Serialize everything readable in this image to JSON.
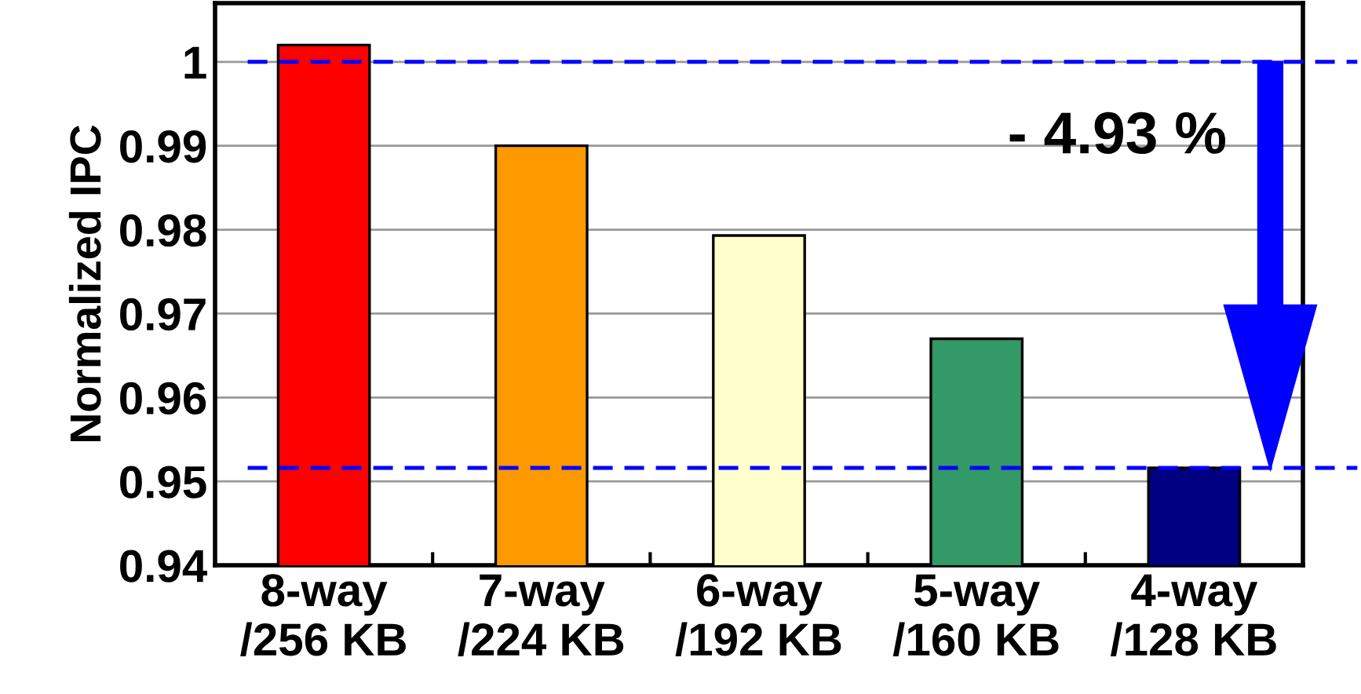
{
  "chart_data": {
    "type": "bar",
    "ylabel": "Normalized IPC",
    "categories": [
      "8-way\n/256 KB",
      "7-way\n/224 KB",
      "6-way\n/192 KB",
      "5-way\n/160 KB",
      "4-way\n/128 KB"
    ],
    "values": [
      1.002,
      0.99,
      0.9793,
      0.967,
      0.9516
    ],
    "colors": [
      "#ff0000",
      "#ff9900",
      "#ffffcc",
      "#339966",
      "#000080"
    ],
    "ylim": [
      0.94,
      1.007
    ],
    "yticks": [
      0.94,
      0.95,
      0.96,
      0.97,
      0.98,
      0.99,
      1
    ],
    "grid": "y",
    "ref_lines": [
      {
        "axis": "y",
        "value": 1.0,
        "color": "#0000ff",
        "line_style": "dashed"
      },
      {
        "axis": "y",
        "value": 0.9516,
        "color": "#0000ff",
        "line_style": "dashed"
      }
    ],
    "annotations": [
      "- 4.93 %"
    ]
  }
}
